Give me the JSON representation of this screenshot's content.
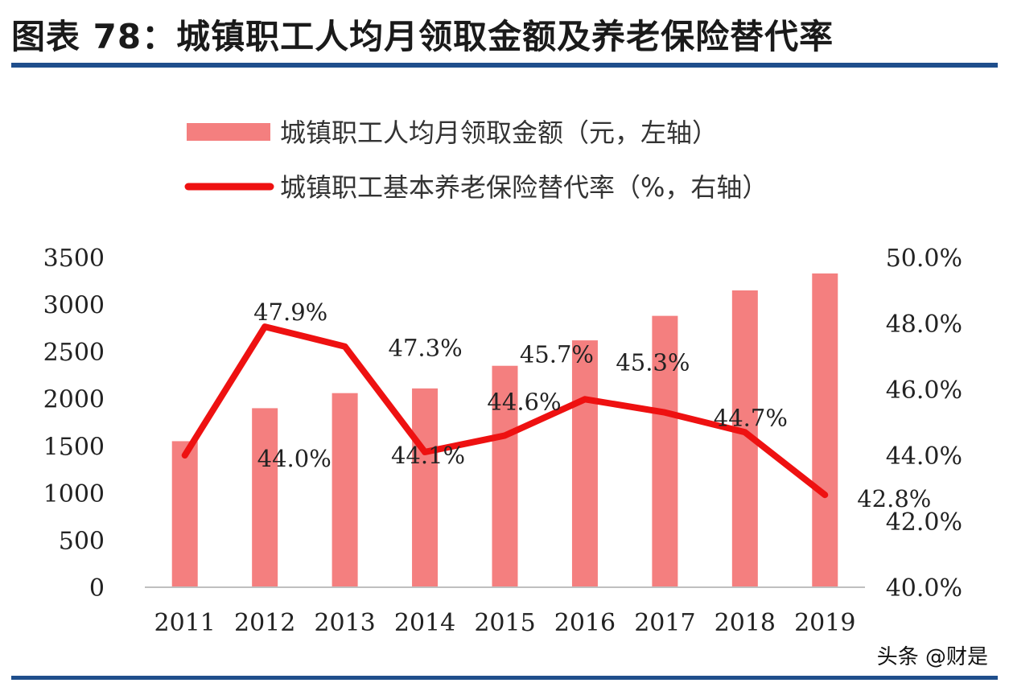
{
  "title": "图表 78：城镇职工人均月领取金额及养老保险替代率",
  "watermark": "头条 @财是",
  "colors": {
    "bar": "#f47f7f",
    "line": "#ee1111",
    "rule": "#1f4e8c"
  },
  "chart_data": {
    "type": "bar",
    "categories": [
      "2011",
      "2012",
      "2013",
      "2014",
      "2015",
      "2016",
      "2017",
      "2018",
      "2019"
    ],
    "series": [
      {
        "name": "城镇职工人均月领取金额（元，左轴）",
        "type": "bar",
        "axis": "left",
        "values": [
          1550,
          1900,
          2060,
          2110,
          2350,
          2620,
          2880,
          3150,
          3330
        ]
      },
      {
        "name": "城镇职工基本养老保险替代率（%，右轴）",
        "type": "line",
        "axis": "right",
        "values": [
          44.0,
          47.9,
          47.3,
          44.1,
          44.6,
          45.7,
          45.3,
          44.7,
          42.8
        ],
        "labels": [
          "44.0%",
          "47.9%",
          "47.3%",
          "44.1%",
          "44.6%",
          "45.7%",
          "45.3%",
          "44.7%",
          "42.8%"
        ]
      }
    ],
    "y_left": {
      "range": [
        0,
        3500
      ],
      "ticks": [
        "0",
        "500",
        "1000",
        "1500",
        "2000",
        "2500",
        "3000",
        "3500"
      ]
    },
    "y_right": {
      "range": [
        40,
        50
      ],
      "ticks": [
        "40.0%",
        "42.0%",
        "44.0%",
        "46.0%",
        "48.0%",
        "50.0%"
      ]
    },
    "legend_position": "top",
    "grid": false
  }
}
